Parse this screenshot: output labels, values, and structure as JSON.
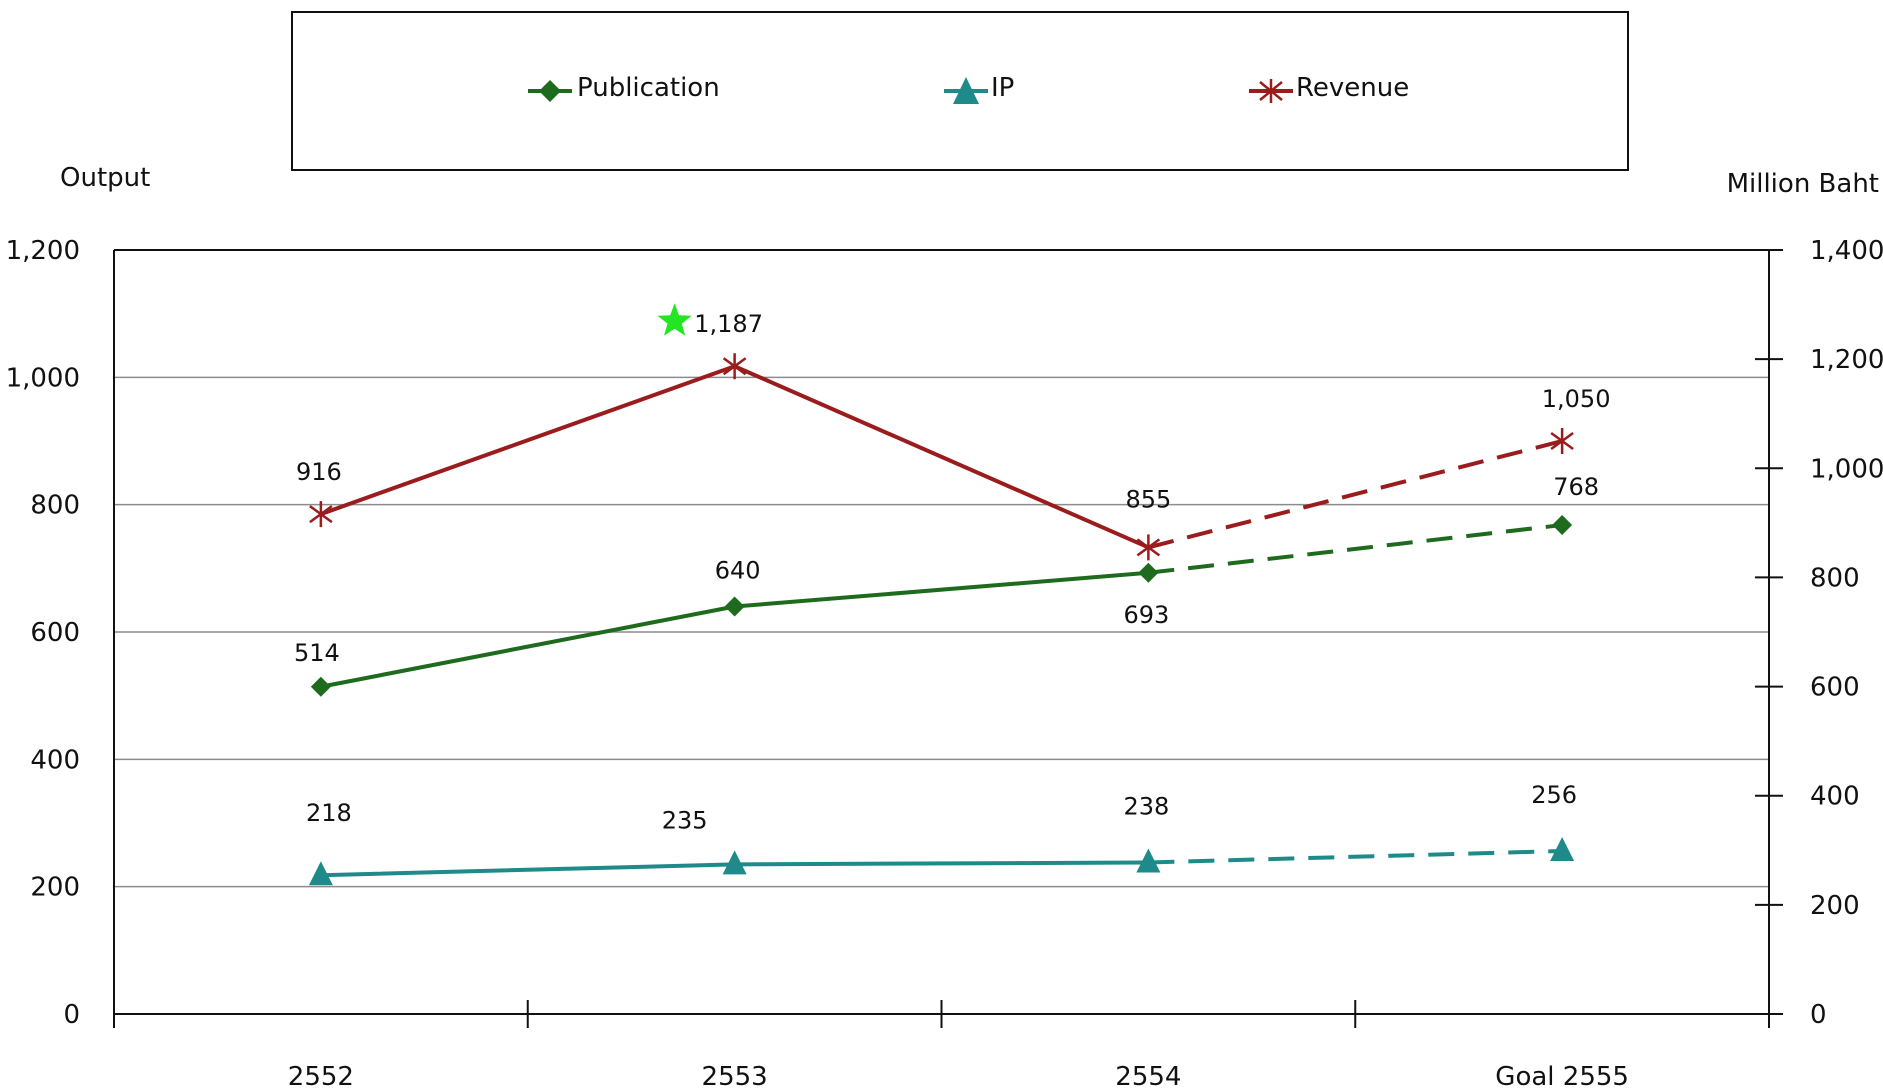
{
  "chart_data": {
    "type": "line",
    "categories": [
      "2552",
      "2553",
      "2554",
      "Goal 2555"
    ],
    "y_left": {
      "label": "Output",
      "ylim": [
        0,
        1200
      ],
      "ticks": [
        "0",
        "200",
        "400",
        "600",
        "800",
        "1,000",
        "1,200"
      ]
    },
    "y_right": {
      "label": "Million Baht",
      "ylim": [
        0,
        1400
      ],
      "ticks": [
        "0",
        "200",
        "400",
        "600",
        "800",
        "1,000",
        "1,200",
        "1,400"
      ]
    },
    "grid": true,
    "legend_position": "top",
    "projected_from_index": 2,
    "series": [
      {
        "name": "Publication",
        "axis": "left",
        "marker": "diamond",
        "color": "#1e6b1e",
        "values": [
          514,
          640,
          693,
          768
        ],
        "labels": [
          "514",
          "640",
          "693",
          "768"
        ]
      },
      {
        "name": "IP",
        "axis": "left",
        "marker": "triangle",
        "color": "#1f8a8a",
        "values": [
          218,
          235,
          238,
          256
        ],
        "labels": [
          "218",
          "235",
          "238",
          "256"
        ]
      },
      {
        "name": "Revenue",
        "axis": "right",
        "marker": "asterisk",
        "color": "#9b1c1c",
        "values": [
          916,
          1187,
          855,
          1050
        ],
        "labels": [
          "916",
          "1,187",
          "855",
          "1,050"
        ]
      }
    ],
    "highlight": {
      "series": "Revenue",
      "index": 1,
      "marker": "star",
      "color": "#22e622"
    }
  }
}
